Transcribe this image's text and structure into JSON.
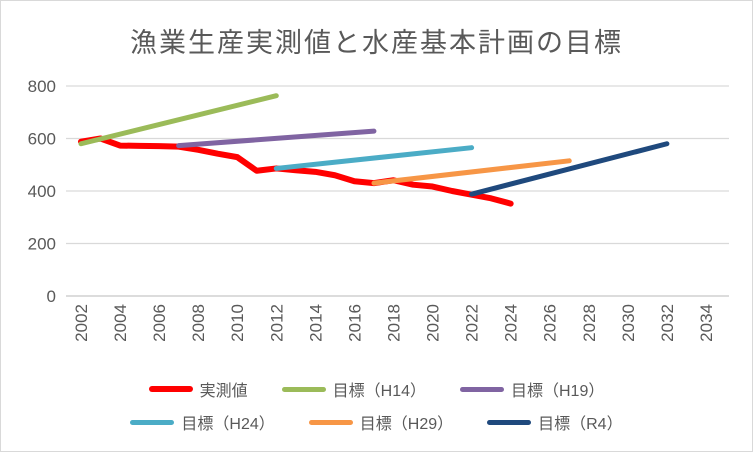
{
  "title": "漁業生産実測値と水産基本計画の目標",
  "colors": {
    "text": "#595959",
    "gridline": "#d9d9d9",
    "axis_line": "#c6c6c6",
    "background": "#ffffff",
    "border": "#d9d9d9"
  },
  "chart_data": {
    "type": "line",
    "title": "漁業生産実測値と水産基本計画の目標",
    "xlabel": "",
    "ylabel": "",
    "ylim": [
      0,
      800
    ],
    "xlim": [
      2001.2,
      2035.3
    ],
    "y_ticks": [
      0,
      200,
      400,
      600,
      800
    ],
    "x_ticks": [
      2002,
      2004,
      2006,
      2008,
      2010,
      2012,
      2014,
      2016,
      2018,
      2020,
      2022,
      2024,
      2026,
      2028,
      2030,
      2032,
      2034
    ],
    "grid": "horizontal",
    "legend_position": "bottom",
    "legend_columns": 3,
    "series": [
      {
        "name": "実測値",
        "color": "#ff0000",
        "width": 6,
        "points": [
          [
            2002,
            588
          ],
          [
            2003,
            600
          ],
          [
            2004,
            573
          ],
          [
            2005,
            572
          ],
          [
            2006,
            571
          ],
          [
            2007,
            569
          ],
          [
            2008,
            557
          ],
          [
            2009,
            542
          ],
          [
            2010,
            529
          ],
          [
            2011,
            477
          ],
          [
            2012,
            486
          ],
          [
            2013,
            479
          ],
          [
            2014,
            473
          ],
          [
            2015,
            460
          ],
          [
            2016,
            437
          ],
          [
            2017,
            430
          ],
          [
            2018,
            441
          ],
          [
            2019,
            424
          ],
          [
            2020,
            417
          ],
          [
            2021,
            400
          ],
          [
            2022,
            386
          ],
          [
            2023,
            372
          ],
          [
            2024,
            352
          ]
        ]
      },
      {
        "name": "目標（H14）",
        "color": "#9bbb59",
        "width": 5,
        "points": [
          [
            2002,
            580
          ],
          [
            2012,
            763
          ]
        ]
      },
      {
        "name": "目標（H19）",
        "color": "#8064a2",
        "width": 5,
        "points": [
          [
            2007,
            573
          ],
          [
            2017,
            628
          ]
        ]
      },
      {
        "name": "目標（H24）",
        "color": "#4bacc6",
        "width": 5,
        "points": [
          [
            2012,
            486
          ],
          [
            2022,
            565
          ]
        ]
      },
      {
        "name": "目標（H29）",
        "color": "#f79646",
        "width": 5,
        "points": [
          [
            2017,
            430
          ],
          [
            2027,
            515
          ]
        ]
      },
      {
        "name": "目標（R4）",
        "color": "#1f497d",
        "width": 5,
        "points": [
          [
            2022,
            388
          ],
          [
            2032,
            580
          ]
        ]
      }
    ]
  }
}
